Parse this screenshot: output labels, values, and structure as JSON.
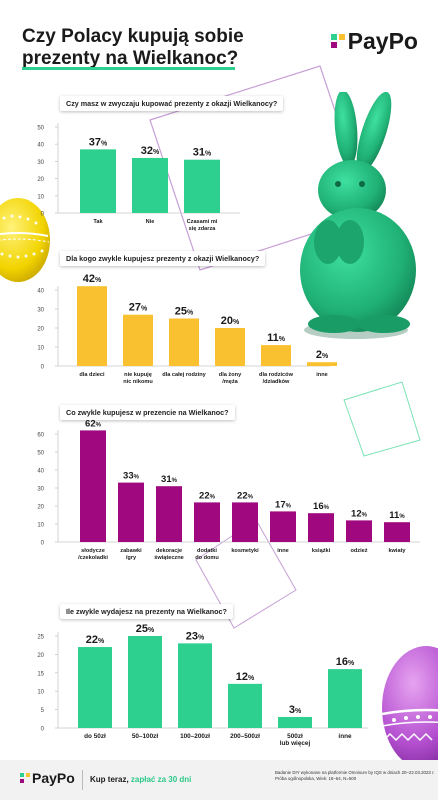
{
  "title": {
    "line1": "Czy Polacy kupują sobie",
    "line2": "prezenty na Wielkanoc?"
  },
  "logo": {
    "text": "PayPo"
  },
  "colors": {
    "green": "#2dd08f",
    "yellow": "#f9c02f",
    "purple": "#a0087f",
    "dark": "#1a1a1a",
    "line": "#c8c8c8"
  },
  "chart_data": [
    {
      "type": "bar",
      "title": "Czy masz w zwyczaju kupować prezenty z okazji Wielkanocy?",
      "categories": [
        [
          "Tak"
        ],
        [
          "Nie"
        ],
        [
          "Czasami mi",
          "się zdarza"
        ]
      ],
      "values": [
        37,
        32,
        31
      ],
      "labels": [
        "37",
        "32",
        "31"
      ],
      "ylim": [
        0,
        50
      ],
      "yticks": [
        0,
        10,
        20,
        30,
        40,
        50
      ],
      "color": "#2dd08f",
      "grid": false
    },
    {
      "type": "bar",
      "title": "Dla kogo zwykle kupujesz prezenty z okazji Wielkanocy?",
      "categories": [
        [
          "dla dzieci"
        ],
        [
          "nie kupuję",
          "nic nikomu"
        ],
        [
          "dla całej rodziny"
        ],
        [
          "dla żony",
          "/męża"
        ],
        [
          "dla rodziców",
          "/dziadków"
        ],
        [
          "inne"
        ]
      ],
      "values": [
        42,
        27,
        25,
        20,
        11,
        2
      ],
      "labels": [
        "42",
        "27",
        "25",
        "20",
        "11",
        "2"
      ],
      "ylim": [
        0,
        40
      ],
      "yticks": [
        0,
        10,
        20,
        30,
        40
      ],
      "color": "#f9c02f",
      "grid": false
    },
    {
      "type": "bar",
      "title": "Co zwykle kupujesz w prezencie na Wielkanoc?",
      "categories": [
        [
          "słodycze",
          "/czekoladki"
        ],
        [
          "zabawki",
          "/gry"
        ],
        [
          "dekoracje",
          "świąteczne"
        ],
        [
          "dodatki",
          "do domu"
        ],
        [
          "kosmetyki"
        ],
        [
          "inne"
        ],
        [
          "książki"
        ],
        [
          "odzież"
        ],
        [
          "kwiaty"
        ]
      ],
      "values": [
        62,
        33,
        31,
        22,
        22,
        17,
        16,
        12,
        11
      ],
      "labels": [
        "62",
        "33",
        "31",
        "22",
        "22",
        "17",
        "16",
        "12",
        "11"
      ],
      "ylim": [
        0,
        60
      ],
      "yticks": [
        0,
        10,
        20,
        30,
        40,
        50,
        60
      ],
      "color": "#a0087f",
      "grid": false
    },
    {
      "type": "bar",
      "title": "Ile zwykle wydajesz na prezenty na Wielkanoc?",
      "categories": [
        [
          "do 50zł"
        ],
        [
          "50–100zł"
        ],
        [
          "100–200zł"
        ],
        [
          "200–500zł"
        ],
        [
          "500zł",
          "lub więcej"
        ],
        [
          "inne"
        ]
      ],
      "values": [
        22,
        25,
        23,
        12,
        3,
        16
      ],
      "labels": [
        "22",
        "25",
        "23",
        "12",
        "3",
        "16"
      ],
      "ylim": [
        0,
        25
      ],
      "yticks": [
        0,
        5,
        10,
        15,
        20,
        25
      ],
      "color": "#2dd08f",
      "grid": false
    }
  ],
  "pct_symbol": "%",
  "footer": {
    "logo": "PayPo",
    "cta_prefix": "Kup teraz, ",
    "cta_highlight": "zapłać za 30 dni",
    "note_line1": "Badanie DIY wykonane na platformie Omnisurv by IQS w dniach 20–22.03.2023 r.",
    "note_line2": "Próba ogólnopolska, Wiek: 18–64, N=500"
  }
}
